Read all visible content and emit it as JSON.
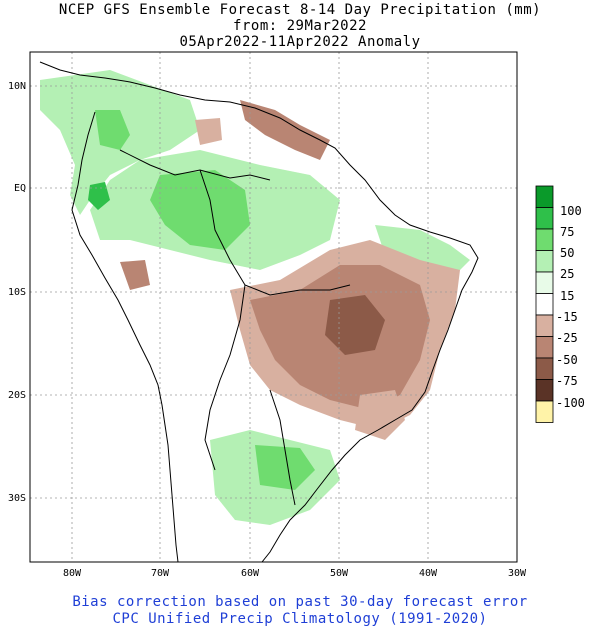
{
  "title": {
    "line1": "NCEP GFS Ensemble Forecast 8-14 Day Precipitation (mm)",
    "line2": "from: 29Mar2022",
    "line3": "05Apr2022-11Apr2022 Anomaly"
  },
  "footer": {
    "line1": "Bias correction based on past 30-day forecast error",
    "line2": "CPC Unified Precip Climatology (1991-2020)"
  },
  "axes": {
    "lon_labels": [
      "80W",
      "70W",
      "60W",
      "50W",
      "40W",
      "30W"
    ],
    "lat_labels": [
      "10N",
      "EQ",
      "10S",
      "20S",
      "30S"
    ]
  },
  "legend": {
    "labels": [
      "100",
      "75",
      "50",
      "25",
      "15",
      "-15",
      "-25",
      "-50",
      "-75",
      "-100"
    ],
    "colors": [
      "#0a9a2a",
      "#2fc04a",
      "#6fdc6f",
      "#b4f0b4",
      "#e8fbe8",
      "#ffffff",
      "#d8b0a0",
      "#b98573",
      "#8c5a48",
      "#5a3326",
      "#fff3a8"
    ]
  },
  "colors": {
    "wet_light": "#b4f0b4",
    "wet_mid": "#6fdc6f",
    "wet_dark": "#2fc04a",
    "dry_light": "#d8b0a0",
    "dry_mid": "#b98573",
    "dry_dark": "#8c5a48",
    "footer_text": "#1f3fd6"
  }
}
